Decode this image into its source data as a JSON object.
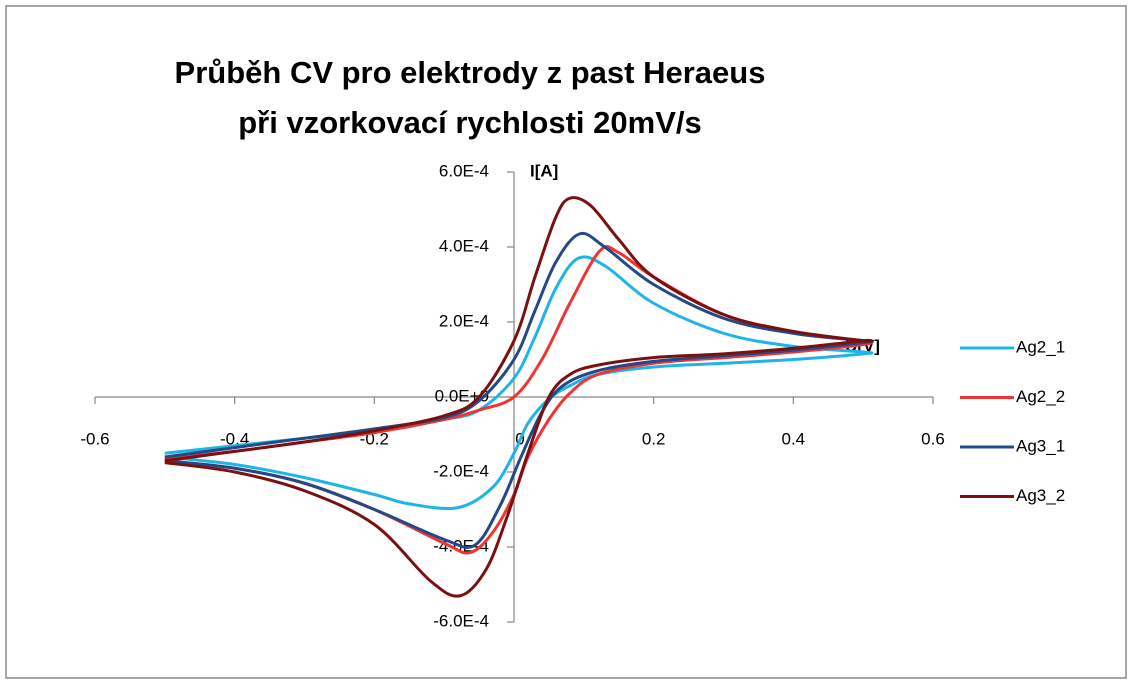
{
  "chart_data": {
    "type": "line",
    "title": "Průběh CV pro elektrody z past Heraeus při vzorkovací rychlosti 20mV/s",
    "x_label": "U[V]",
    "y_label": "I[A]",
    "xlim": [
      -0.6,
      0.6
    ],
    "xticks": [
      -0.6,
      -0.4,
      -0.2,
      0,
      0.2,
      0.4,
      0.6
    ],
    "ylim": [
      -0.0006,
      0.0006
    ],
    "yticks": [
      {
        "value": -0.0006,
        "label": "-6.0E-4"
      },
      {
        "value": -0.0004,
        "label": "-4.0E-4"
      },
      {
        "value": -0.0002,
        "label": "-2.0E-4"
      },
      {
        "value": 0,
        "label": "0.0E+0"
      },
      {
        "value": 0.0002,
        "label": "2.0E-4"
      },
      {
        "value": 0.0004,
        "label": "4.0E-4"
      },
      {
        "value": 0.0006,
        "label": "6.0E-4"
      }
    ],
    "grid": false,
    "legend": "right",
    "series": [
      {
        "name": "Ag2_1",
        "color": "#1fb4e8",
        "x": [
          -0.5,
          -0.4,
          -0.3,
          -0.2,
          -0.1,
          -0.05,
          0,
          0.03,
          0.06,
          0.092,
          0.13,
          0.2,
          0.3,
          0.4,
          0.5,
          0.5,
          0.4,
          0.3,
          0.2,
          0.12,
          0.08,
          0.05,
          0.02,
          0,
          -0.03,
          -0.08,
          -0.15,
          -0.2,
          -0.3,
          -0.4,
          -0.5
        ],
        "values": [
          -0.00015,
          -0.00013,
          -0.00011,
          -9e-05,
          -6e-05,
          -3.5e-05,
          5e-05,
          0.00016,
          0.00029,
          0.00037,
          0.00035,
          0.00025,
          0.00017,
          0.000135,
          0.00012,
          0.000115,
          0.0001,
          9e-05,
          8e-05,
          6e-05,
          3e-05,
          -5e-06,
          -7e-05,
          -0.00015,
          -0.00024,
          -0.000295,
          -0.000285,
          -0.00026,
          -0.000215,
          -0.00018,
          -0.00016
        ]
      },
      {
        "name": "Ag2_2",
        "color": "#ee3535",
        "x": [
          -0.5,
          -0.4,
          -0.3,
          -0.2,
          -0.1,
          -0.05,
          0,
          0.04,
          0.08,
          0.123,
          0.15,
          0.2,
          0.3,
          0.4,
          0.5,
          0.5,
          0.4,
          0.3,
          0.2,
          0.12,
          0.08,
          0.05,
          0.02,
          0,
          -0.03,
          -0.063,
          -0.1,
          -0.2,
          -0.3,
          -0.4,
          -0.5
        ],
        "values": [
          -0.000165,
          -0.000145,
          -0.00012,
          -9.5e-05,
          -6e-05,
          -3.5e-05,
          0,
          0.0001,
          0.00025,
          0.00039,
          0.000385,
          0.00032,
          0.00022,
          0.00017,
          0.00015,
          0.00014,
          0.00012,
          0.000105,
          9e-05,
          6e-05,
          1e-05,
          -6e-05,
          -0.00016,
          -0.00026,
          -0.00036,
          -0.000415,
          -0.00039,
          -0.0003,
          -0.00023,
          -0.00019,
          -0.00017
        ]
      },
      {
        "name": "Ag3_1",
        "color": "#234a86",
        "x": [
          -0.5,
          -0.4,
          -0.3,
          -0.2,
          -0.1,
          -0.05,
          0,
          0.03,
          0.06,
          0.094,
          0.13,
          0.2,
          0.3,
          0.4,
          0.5,
          0.5,
          0.4,
          0.3,
          0.2,
          0.12,
          0.07,
          0.04,
          0.01,
          -0.02,
          -0.056,
          -0.1,
          -0.2,
          -0.3,
          -0.4,
          -0.5
        ],
        "values": [
          -0.00016,
          -0.000135,
          -0.00011,
          -8.5e-05,
          -5.5e-05,
          -1e-05,
          0.0001,
          0.00023,
          0.00036,
          0.000435,
          0.0004,
          0.0003,
          0.00021,
          0.00017,
          0.00015,
          0.000145,
          0.000125,
          0.00011,
          9.5e-05,
          7e-05,
          3e-05,
          -4e-05,
          -0.00016,
          -0.00029,
          -0.000395,
          -0.00038,
          -0.0003,
          -0.00023,
          -0.00019,
          -0.00017
        ]
      },
      {
        "name": "Ag3_2",
        "color": "#7a1010",
        "x": [
          -0.5,
          -0.4,
          -0.3,
          -0.2,
          -0.1,
          -0.05,
          0,
          0.03,
          0.06,
          0.08,
          0.11,
          0.15,
          0.2,
          0.3,
          0.4,
          0.5,
          0.5,
          0.4,
          0.3,
          0.2,
          0.12,
          0.08,
          0.05,
          0.02,
          -0.01,
          -0.04,
          -0.077,
          -0.12,
          -0.2,
          -0.3,
          -0.4,
          -0.5
        ],
        "values": [
          -0.00017,
          -0.000145,
          -0.00012,
          -9e-05,
          -5e-05,
          0,
          0.00015,
          0.00032,
          0.00048,
          0.00053,
          0.00051,
          0.00042,
          0.00032,
          0.00022,
          0.000175,
          0.00015,
          0.00015,
          0.00013,
          0.000115,
          0.000105,
          8.5e-05,
          6e-05,
          0,
          -0.00015,
          -0.00032,
          -0.00046,
          -0.00053,
          -0.00049,
          -0.00034,
          -0.00025,
          -0.0002,
          -0.000175
        ]
      }
    ]
  }
}
